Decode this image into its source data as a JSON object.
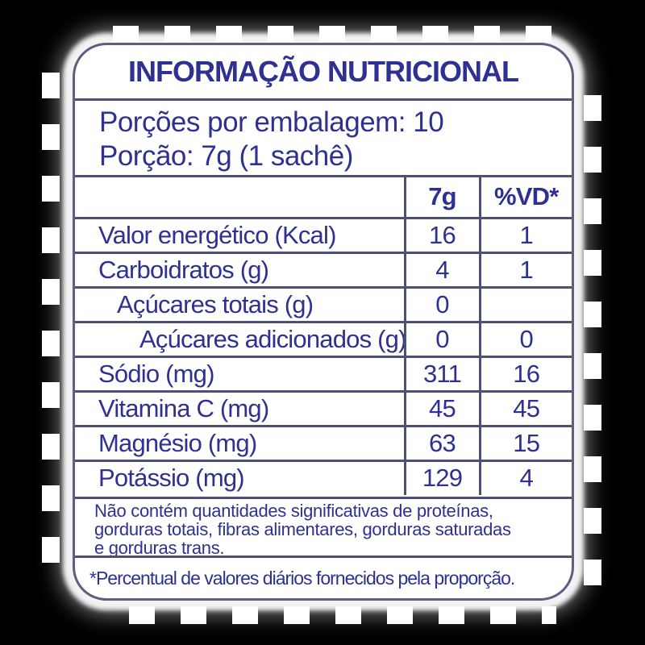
{
  "label": {
    "title": "INFORMAÇÃO NUTRICIONAL",
    "serving_info": {
      "line1": "Porções por embalagem: 10",
      "line2": "Porção: 7g (1 sachê)"
    },
    "table": {
      "columns": [
        "",
        "7g",
        "%VD*"
      ],
      "rows": [
        {
          "name": "Valor energético (Kcal)",
          "amount": "16",
          "vd": "1",
          "indent": 0
        },
        {
          "name": "Carboidratos (g)",
          "amount": "4",
          "vd": "1",
          "indent": 0
        },
        {
          "name": "Açúcares totais (g)",
          "amount": "0",
          "vd": "",
          "indent": 1
        },
        {
          "name": "Açúcares adicionados (g)",
          "amount": "0",
          "vd": "0",
          "indent": 2
        },
        {
          "name": "Sódio (mg)",
          "amount": "311",
          "vd": "16",
          "indent": 0
        },
        {
          "name": "Vitamina C (mg)",
          "amount": "45",
          "vd": "45",
          "indent": 0
        },
        {
          "name": "Magnésio (mg)",
          "amount": "63",
          "vd": "15",
          "indent": 0
        },
        {
          "name": "Potássio (mg)",
          "amount": "129",
          "vd": "4",
          "indent": 0
        }
      ]
    },
    "note_lines": [
      "Não contém quantidades significativas de proteínas,",
      "gorduras totais, fibras alimentares, gorduras saturadas",
      "e gorduras trans."
    ],
    "footnote": "*Percentual de valores diários fornecidos pela proporção.",
    "colors": {
      "text": "#2e3192",
      "grid_line": "#4c5074",
      "outer_border": "#5b5f80",
      "panel_background": "#ffffff",
      "page_background": "#000000"
    }
  }
}
